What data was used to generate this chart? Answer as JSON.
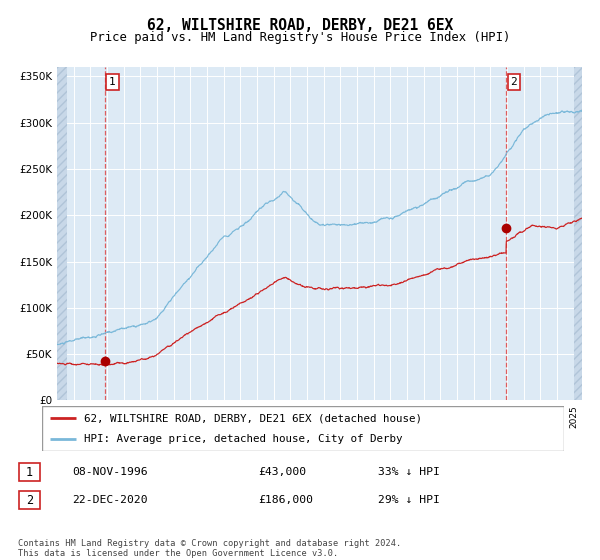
{
  "title": "62, WILTSHIRE ROAD, DERBY, DE21 6EX",
  "subtitle": "Price paid vs. HM Land Registry's House Price Index (HPI)",
  "hpi_color": "#7ab8d9",
  "price_color": "#cc2222",
  "dot_color": "#aa0000",
  "background_color": "#ddeaf5",
  "hatch_bg": "#c8d8e8",
  "grid_color": "#ffffff",
  "vline_color": "#dd4444",
  "purchase1_year": 1996.87,
  "purchase1_price": 43000,
  "purchase2_year": 2020.95,
  "purchase2_price": 186000,
  "xmin": 1994.0,
  "xmax": 2025.5,
  "ymin": 0,
  "ymax": 360000,
  "yticks": [
    0,
    50000,
    100000,
    150000,
    200000,
    250000,
    300000,
    350000
  ],
  "ytick_labels": [
    "£0",
    "£50K",
    "£100K",
    "£150K",
    "£200K",
    "£250K",
    "£300K",
    "£350K"
  ],
  "legend_label1": "62, WILTSHIRE ROAD, DERBY, DE21 6EX (detached house)",
  "legend_label2": "HPI: Average price, detached house, City of Derby",
  "note1_date": "08-NOV-1996",
  "note1_price": "£43,000",
  "note1_pct": "33% ↓ HPI",
  "note2_date": "22-DEC-2020",
  "note2_price": "£186,000",
  "note2_pct": "29% ↓ HPI",
  "footer": "Contains HM Land Registry data © Crown copyright and database right 2024.\nThis data is licensed under the Open Government Licence v3.0."
}
